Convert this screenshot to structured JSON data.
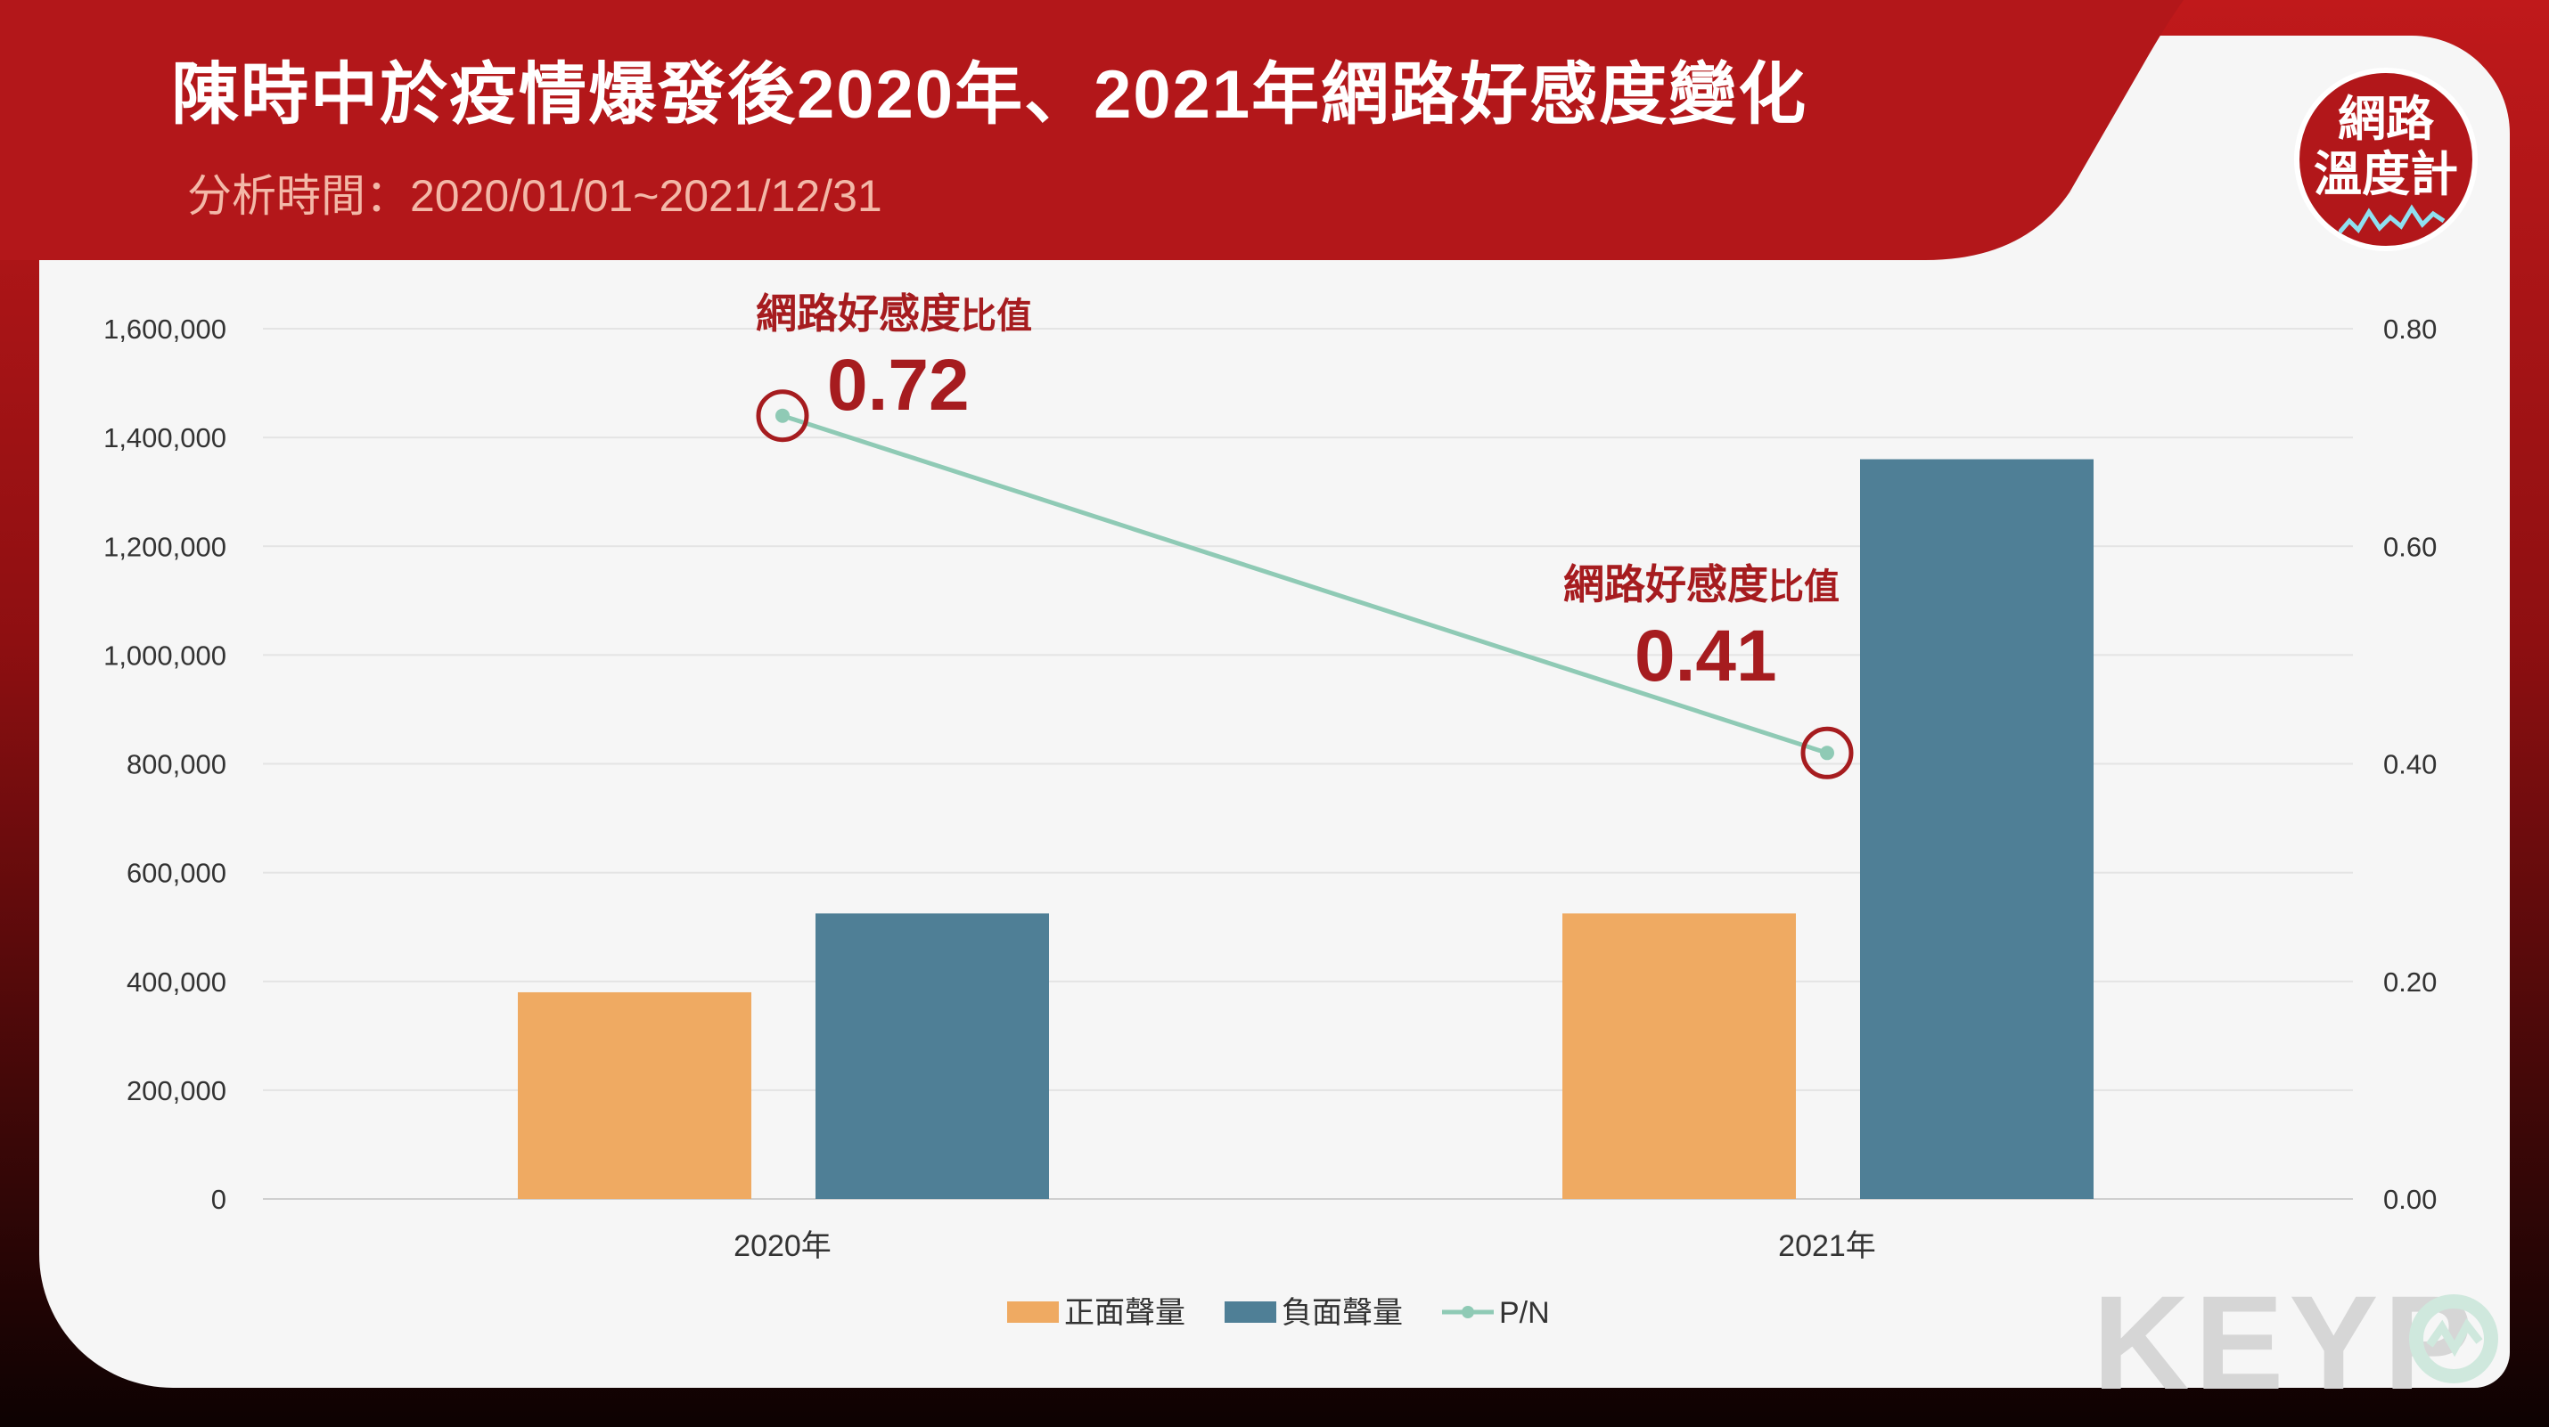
{
  "header": {
    "title": "陳時中於疫情爆發後2020年、2021年網路好感度變化",
    "subtitle": "分析時間：2020/01/01~2021/12/31"
  },
  "logo": {
    "line1": "網路",
    "line2": "溫度計"
  },
  "watermark": {
    "text": "KEYP"
  },
  "colors": {
    "positive": "#efaa62",
    "negative": "#4f7f96",
    "ratio_line": "#8fcab5",
    "callout": "#a61c1f",
    "banner": "#b3171a"
  },
  "chart_data": {
    "type": "bar",
    "categories": [
      "2020年",
      "2021年"
    ],
    "series": [
      {
        "name": "正面聲量",
        "type": "bar",
        "axis": "left",
        "values": [
          380000,
          525000
        ]
      },
      {
        "name": "負面聲量",
        "type": "bar",
        "axis": "left",
        "values": [
          525000,
          1360000
        ]
      },
      {
        "name": "P/N",
        "type": "line",
        "axis": "right",
        "values": [
          0.72,
          0.41
        ]
      }
    ],
    "left_axis": {
      "ylim": [
        0,
        1600000
      ],
      "ticks": [
        "1,600,000",
        "1,400,000",
        "1,200,000",
        "1,000,000",
        "800,000",
        "600,000",
        "400,000",
        "200,000",
        "0"
      ]
    },
    "right_axis": {
      "ylim": [
        0,
        0.8
      ],
      "ticks": [
        "0.80",
        "0.60",
        "0.40",
        "0.20",
        "0.00"
      ]
    },
    "annotations": [
      {
        "label_main": "網路好感度",
        "label_small": "比值",
        "value": "0.72"
      },
      {
        "label_main": "網路好感度",
        "label_small": "比值",
        "value": "0.41"
      }
    ],
    "legend": {
      "position": "bottom"
    },
    "grid": true
  }
}
